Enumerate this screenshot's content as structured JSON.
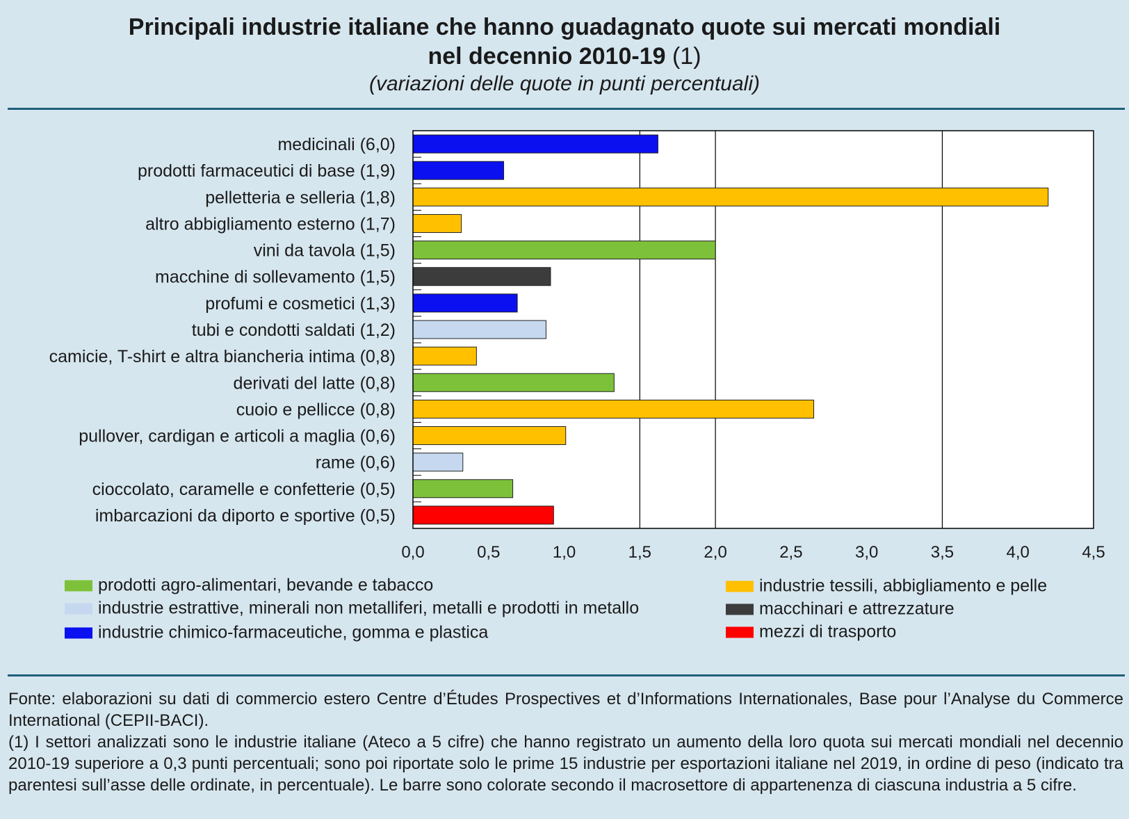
{
  "title": "Principali industrie italiane che hanno guadagnato quote sui mercati mondiali",
  "title_line2": "nel decennio 2010-19",
  "title_note": "(1)",
  "subtitle": "(variazioni delle quote in punti percentuali)",
  "chart_data": {
    "type": "bar",
    "orientation": "horizontal",
    "categories": [
      "medicinali (6,0)",
      "prodotti farmaceutici di base (1,9)",
      "pelletteria e selleria (1,8)",
      "altro abbigliamento esterno (1,7)",
      "vini da tavola (1,5)",
      "macchine di sollevamento (1,5)",
      "profumi e cosmetici (1,3)",
      "tubi e condotti saldati (1,2)",
      "camicie, T-shirt e altra biancheria intima (0,8)",
      "derivati del latte (0,8)",
      "cuoio e pellicce (0,8)",
      "pullover, cardigan e articoli a maglia (0,6)",
      "rame (0,6)",
      "cioccolato, caramelle e confetterie (0,5)",
      "imbarcazioni da diporto e sportive (0,5)"
    ],
    "values": [
      1.62,
      0.6,
      4.2,
      0.32,
      2.0,
      0.91,
      0.69,
      0.88,
      0.42,
      1.33,
      2.65,
      1.01,
      0.33,
      0.66,
      0.93
    ],
    "sectors": [
      "chem",
      "chem",
      "text",
      "text",
      "agro",
      "mach",
      "chem",
      "extr",
      "text",
      "agro",
      "text",
      "text",
      "extr",
      "agro",
      "trans"
    ],
    "xlim": [
      0,
      4.5
    ],
    "xticks": [
      "0,0",
      "0,5",
      "1,0",
      "1,5",
      "2,0",
      "2,5",
      "3,0",
      "3,5",
      "4,0",
      "4,5"
    ],
    "gridlines_at": [
      1.5,
      2.0,
      3.5
    ],
    "legend": [
      {
        "key": "agro",
        "label": "prodotti agro-alimentari, bevande e tabacco",
        "color": "#7dc13a"
      },
      {
        "key": "extr",
        "label": "industrie estrattive, minerali non metalliferi, metalli e prodotti in metallo",
        "color": "#c5d8ef"
      },
      {
        "key": "chem",
        "label": "industrie chimico-farmaceutiche, gomma e plastica",
        "color": "#0a10f0"
      },
      {
        "key": "text",
        "label": "industrie tessili, abbigliamento e pelle",
        "color": "#ffc000"
      },
      {
        "key": "mach",
        "label": "macchinari e attrezzature",
        "color": "#3c3c3c"
      },
      {
        "key": "trans",
        "label": "mezzi di trasporto",
        "color": "#ff0000"
      }
    ]
  },
  "source": {
    "line1": "Fonte: elaborazioni su dati di commercio estero Centre d’Études Prospectives et d’Informations Internationales, Base pour l’Analyse du Commerce International (CEPII-BACI).",
    "line2": "(1) I settori analizzati sono le industrie italiane (Ateco a 5 cifre) che hanno registrato un aumento della loro quota sui mercati mondiali nel decennio 2010-19 superiore a 0,3 punti percentuali; sono poi riportate solo le prime 15 industrie per esportazioni italiane nel 2019, in ordine di peso (indicato tra parentesi sull’asse delle ordinate, in percentuale). Le barre sono colorate secondo il macrosettore di appartenenza di ciascuna industria a 5 cifre."
  }
}
